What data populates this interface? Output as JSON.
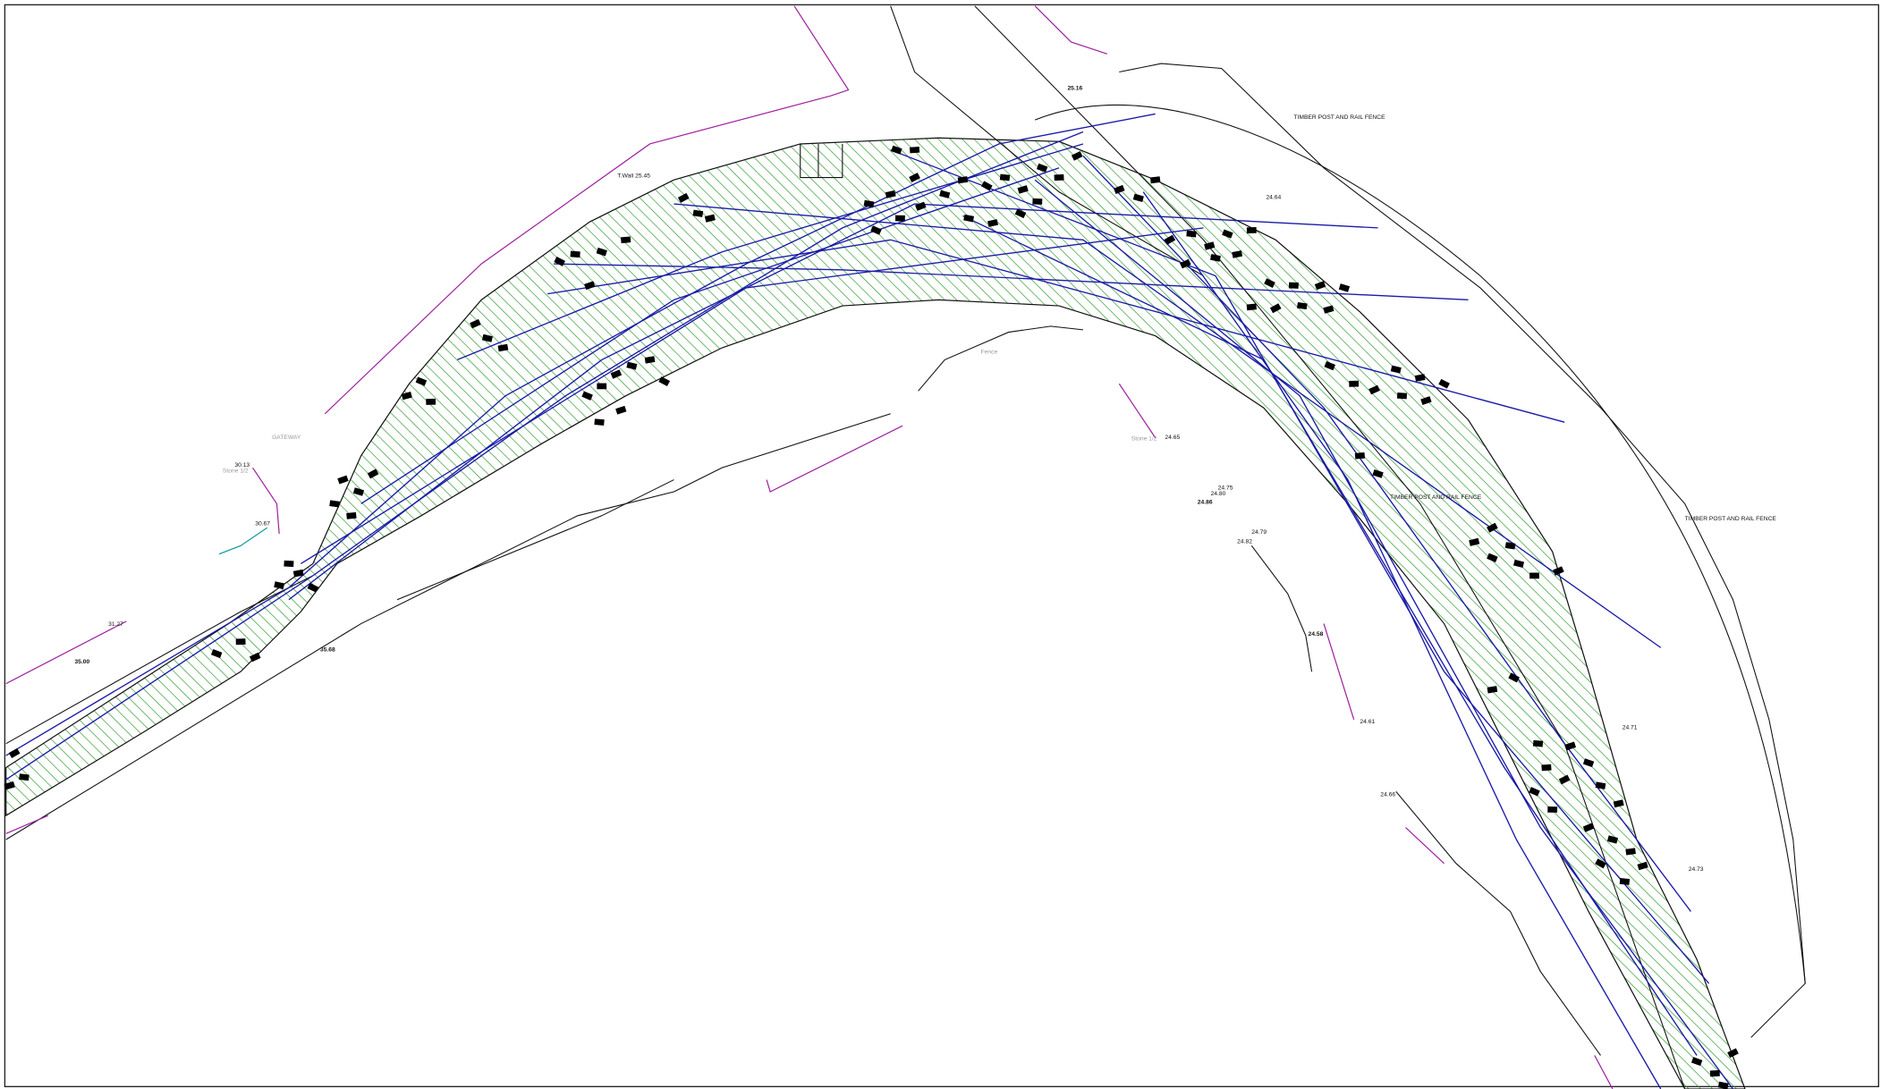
{
  "drawing": {
    "fence_labels": [
      "TIMBER POST AND RAIL FENCE",
      "TIMBER POST AND RAIL FENCE",
      "TIMBER POST AND RAIL FENCE"
    ],
    "feature_labels": [
      "T.Wall 25.45",
      "GATEWAY",
      "Stone 1/2",
      "Stone 1/2",
      "Fence"
    ],
    "levels": [
      "25.16",
      "24.64",
      "24.75",
      "24.80",
      "24.86",
      "24.79",
      "24.82",
      "24.71",
      "24.73",
      "24.66",
      "35.00",
      "35.68",
      "31.27",
      "30.13",
      "30.67",
      "24.65",
      "24.61",
      "24.58"
    ]
  }
}
